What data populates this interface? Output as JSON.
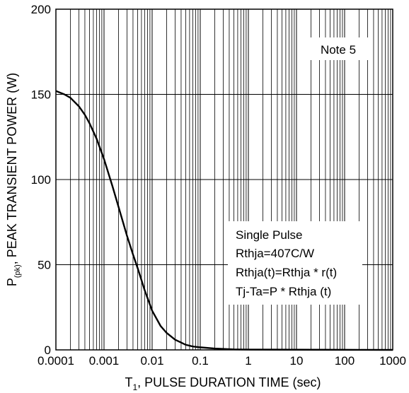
{
  "chart_data": {
    "type": "line",
    "title": "",
    "xlabel": "T",
    "xlabel_sub": "1",
    "xlabel_rest": ", PULSE DURATION TIME (sec)",
    "ylabel_main": "P",
    "ylabel_sub": "(pk)",
    "ylabel_rest": ",  PEAK TRANSIENT POWER (W)",
    "x_scale": "log",
    "xlim": [
      0.0001,
      1000
    ],
    "ylim": [
      0,
      200
    ],
    "grid": true,
    "xticks": [
      {
        "value": 0.0001,
        "label": "0.0001"
      },
      {
        "value": 0.001,
        "label": "0.001"
      },
      {
        "value": 0.01,
        "label": "0.01"
      },
      {
        "value": 0.1,
        "label": "0.1"
      },
      {
        "value": 1,
        "label": "1"
      },
      {
        "value": 10,
        "label": "10"
      },
      {
        "value": 100,
        "label": "100"
      },
      {
        "value": 1000,
        "label": "1000"
      }
    ],
    "yticks": [
      {
        "value": 0,
        "label": "0"
      },
      {
        "value": 50,
        "label": "50"
      },
      {
        "value": 100,
        "label": "100"
      },
      {
        "value": 150,
        "label": "150"
      },
      {
        "value": 200,
        "label": "200"
      }
    ],
    "series": [
      {
        "x": [
          0.0001,
          0.00015,
          0.0002,
          0.0003,
          0.0004,
          0.0005,
          0.0007,
          0.001,
          0.0015,
          0.002,
          0.003,
          0.004,
          0.005,
          0.007,
          0.01,
          0.015,
          0.02,
          0.03,
          0.05,
          0.07,
          0.1,
          0.2,
          0.5,
          1,
          10,
          100,
          1000
        ],
        "y": [
          152,
          150,
          148,
          143,
          138,
          133,
          124,
          112,
          96,
          84,
          67,
          56,
          48,
          35,
          23,
          14,
          10,
          6,
          3,
          2,
          1.5,
          0.8,
          0.3,
          0.2,
          0.1,
          0.05,
          0
        ]
      }
    ],
    "annotations": {
      "note": "Note 5",
      "conditions": [
        "Single Pulse",
        "Rthja=407C/W",
        "Rthja(t)=Rthja * r(t)",
        "Tj-Ta=P * Rthja (t)"
      ]
    },
    "line_color": "#000000",
    "grid_color": "#000000"
  }
}
